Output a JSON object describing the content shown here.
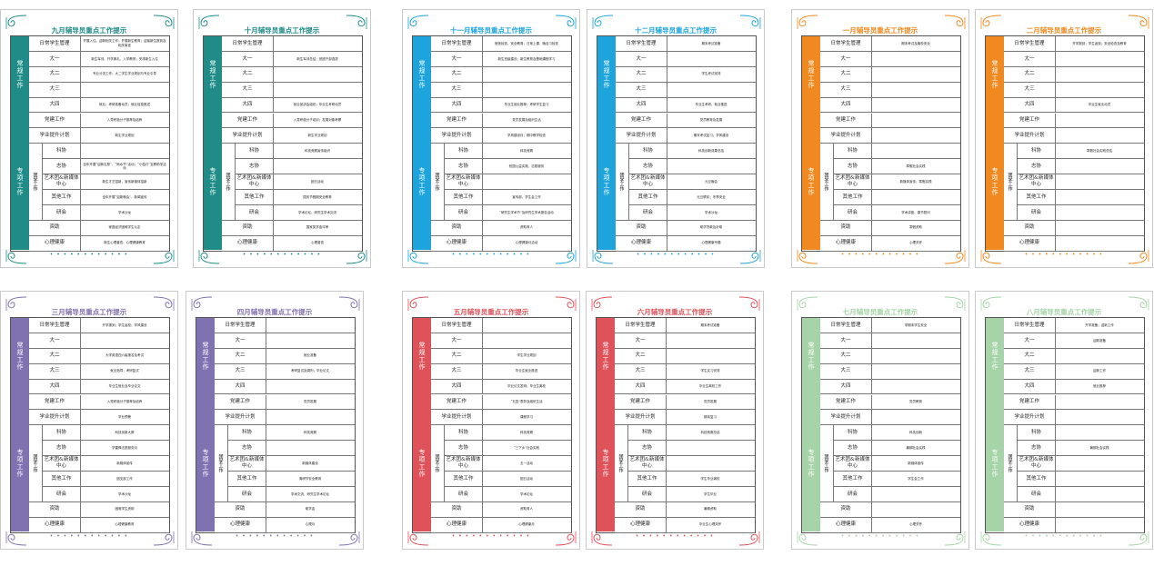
{
  "row_labels": [
    "日常学生管理",
    "大一",
    "大二",
    "大三",
    "大四",
    "党建工作",
    "学业提升计划",
    "科协",
    "志协",
    "艺术团&新媒体中心",
    "其他工作",
    "研会",
    "资助",
    "心理健康"
  ],
  "band_labels": {
    "regular": "常规工作",
    "special": "专项工作",
    "group": "团学工作"
  },
  "dots": "• • • • • • • • • • • •",
  "cards": [
    {
      "title": "九月辅导员重点工作提示",
      "color": "#1f8c88",
      "values": [
        "开展入住、迎新相关工作；开展新生教育；迎接新生报到及相关事宜",
        "新生军训、开学典礼、入学教育；安排新生入住",
        "专业分流工作；大二学生学业规划与专业引导",
        "",
        "就业、考研准备动员；就业信息推送",
        "入党积极分子推荐及培养",
        "新生学业规划",
        "",
        "全年开展“迎新志愿”、“雨水节”活动；“小桔灯”支教助学活动",
        "新生才艺招新，宣传新媒体招新",
        "全年开展“迎新晚会”，新闻宣传",
        "学术沙龙",
        "家庭经济困难学生认定",
        "新生心理普查、心理健康教育"
      ]
    },
    {
      "title": "十月辅导员重点工作提示",
      "color": "#1f8c88",
      "values": [
        "",
        "新生军训总结；班团干部选拔",
        "",
        "",
        "就业宣讲会组织；毕业生考研动员",
        "入党积极分子培训；发展对象考察",
        "新生学业规划",
        "科技竞赛宣传组织",
        "",
        "团日活动",
        "国庆节假期安全教育",
        "学术论坛、研究生学术交流",
        "国家奖学金评审",
        "心理普查"
      ]
    },
    {
      "title": "十一月辅导员重点工作提示",
      "color": "#1da4dc",
      "values": [
        "宿舍检查、安全教育；日常上课、晚自习检查",
        "新生班级建设；新生教育及基础课程学习",
        "",
        "",
        "毕业生就业推荐；考研学生复习",
        "党员发展及组织生活",
        "学风建设月；期中教学检查",
        "科技竞赛",
        "校园公益实践、志愿服务",
        "",
        "宣传部、学生会工作",
        "“研究生学术节”及研究生学术报告活动",
        "资助育人",
        "心理健康月活动"
      ]
    },
    {
      "title": "十二月辅导员重点工作提示",
      "color": "#1da4dc",
      "values": [
        "期末考试准备",
        "",
        "学生考试安排",
        "",
        "毕业生考研、就业推进",
        "党员教育及发展",
        "期末考试复习；学风建设",
        "科技创新成果总结",
        "",
        "元旦晚会",
        "元旦联欢；冬季安全",
        "学术沙龙",
        "助学贷款及补助",
        "心理健康专题"
      ]
    },
    {
      "title": "一月辅导员重点工作提示",
      "color": "#f0891f",
      "values": [
        "期末考试及离校安全",
        "",
        "",
        "",
        "",
        "",
        "",
        "",
        "寒假社会实践",
        "新媒体宣传；寒假实践",
        "",
        "学术讲座、春节慰问",
        "寒假资助",
        "心理关怀"
      ]
    },
    {
      "title": "二月辅导员重点工作提示",
      "color": "#f0891f",
      "values": [
        "开学报到；学生返校；安全检查及教育",
        "",
        "",
        "",
        "毕业生就业动员",
        "",
        "",
        "寒假社会实践总结",
        "",
        "",
        "",
        "",
        "",
        ""
      ]
    },
    {
      "title": "三月辅导员重点工作提示",
      "color": "#8071b0",
      "values": [
        "开学报到；学生返校；学风建设",
        "",
        "大学英语四六级报名及考试",
        "就业指导；考研复试",
        "毕业生就业及毕业论文",
        "入党积极分子推荐及培养",
        "学业预警",
        "科技创新大赛",
        "学雷锋志愿服务月",
        "新媒体宣传",
        "团支部工作",
        "学术沙龙",
        "困难学生资助",
        "心理健康教育"
      ]
    },
    {
      "title": "四月辅导员重点工作提示",
      "color": "#8071b0",
      "values": [
        "",
        "",
        "就业准备",
        "考研复试及调剂；毕业论文",
        "",
        "党员发展",
        "",
        "科技竞赛",
        "",
        "新媒体建设",
        "清明节安全教育",
        "学术交流、研究生学术论坛",
        "助学金",
        "心理月"
      ]
    },
    {
      "title": "五月辅导员重点工作提示",
      "color": "#e0525a",
      "values": [
        "",
        "",
        "学生学业规划",
        "毕业生就业推进",
        "毕业论文答辩；毕业生离校",
        "“五四”表彰及组织生活",
        "课程学习",
        "科技竞赛",
        "“三下乡”社会实践",
        "五一活动",
        "团日活动",
        "学术论坛",
        "资助育人",
        "心理健康月"
      ]
    },
    {
      "title": "六月辅导员重点工作提示",
      "color": "#e0525a",
      "values": [
        "期末考试准备",
        "",
        "",
        "学生实习安排",
        "毕业生离校工作",
        "党员发展",
        "期末复习",
        "科技竞赛总结",
        "",
        "",
        "学生毕业离校",
        "学生毕业",
        "暑期资助",
        "毕业生心理关怀"
      ]
    },
    {
      "title": "七月辅导员重点工作提示",
      "color": "#a6d4a8",
      "values": [
        "学期末学生安全",
        "",
        "",
        "",
        "",
        "党员教育",
        "",
        "科技创新",
        "暑期社会实践",
        "新媒体宣传",
        "学生会工作",
        "",
        "",
        "心理关怀"
      ]
    },
    {
      "title": "八月辅导员重点工作提示",
      "color": "#a6d4a8",
      "values": [
        "开学准备；迎新工作",
        "迎新准备",
        "",
        "迎新工作",
        "就业推荐",
        "",
        "",
        "",
        "暑期社会实践",
        "",
        "",
        "",
        "",
        ""
      ]
    }
  ]
}
